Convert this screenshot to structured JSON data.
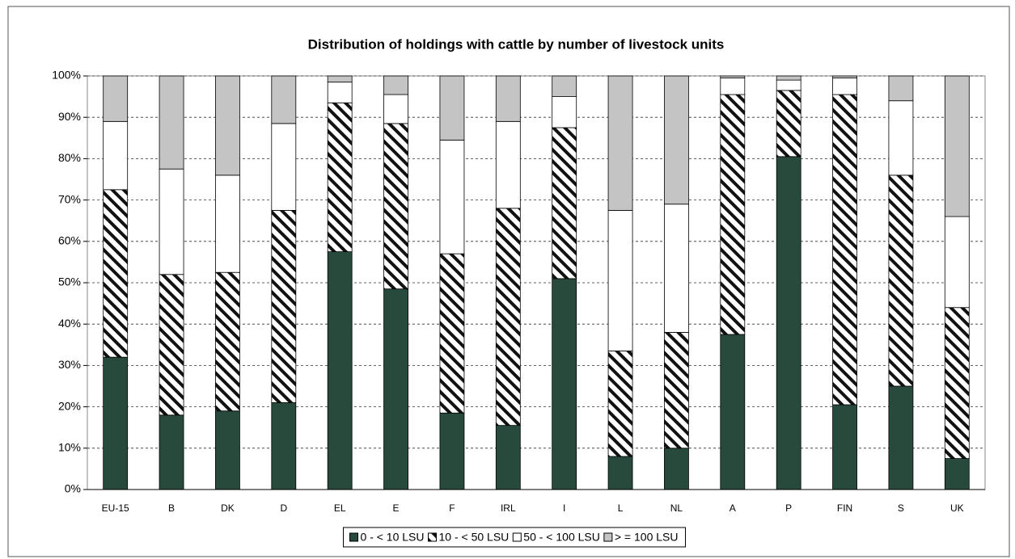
{
  "chart_data": {
    "type": "stacked_bar",
    "title": "Distribution of holdings with cattle by number of livestock units",
    "categories": [
      "EU-15",
      "B",
      "DK",
      "D",
      "EL",
      "E",
      "F",
      "IRL",
      "I",
      "L",
      "NL",
      "A",
      "P",
      "FIN",
      "S",
      "UK"
    ],
    "series": [
      {
        "name": "0 - < 10 LSU",
        "color": "#274a3d",
        "values": [
          32,
          18,
          19,
          21,
          57.5,
          48.5,
          18.5,
          15.5,
          51,
          8,
          10,
          37.5,
          80.5,
          20.5,
          25,
          7.5
        ]
      },
      {
        "name": "10 - < 50 LSU",
        "color": "#111111",
        "pattern": "hatch",
        "values": [
          40.5,
          34,
          33.5,
          46.5,
          36,
          40,
          38.5,
          52.5,
          36.5,
          25.5,
          28,
          58,
          16,
          75,
          51,
          36.5
        ]
      },
      {
        "name": "50 - < 100 LSU",
        "color": "#ffffff",
        "values": [
          16.5,
          25.5,
          23.5,
          21,
          5,
          7,
          27.5,
          21,
          7.5,
          34,
          31,
          4,
          2.5,
          4,
          18,
          22
        ]
      },
      {
        "name": "> = 100 LSU",
        "color": "#c4c4c4",
        "values": [
          11,
          22.5,
          24,
          11.5,
          1.5,
          4.5,
          15.5,
          11,
          5,
          32.5,
          31,
          0.5,
          1,
          0.5,
          6,
          34
        ]
      }
    ],
    "ylim": [
      0,
      100
    ],
    "yticks": [
      {
        "value": 0,
        "label": "0%"
      },
      {
        "value": 10,
        "label": "10%"
      },
      {
        "value": 20,
        "label": "20%"
      },
      {
        "value": 30,
        "label": "30%"
      },
      {
        "value": 40,
        "label": "40%"
      },
      {
        "value": 50,
        "label": "50%"
      },
      {
        "value": 60,
        "label": "60%"
      },
      {
        "value": 70,
        "label": "70%"
      },
      {
        "value": 80,
        "label": "80%"
      },
      {
        "value": 90,
        "label": "90%"
      },
      {
        "value": 100,
        "label": "100%"
      }
    ],
    "grid": true,
    "legend": "bottom"
  }
}
